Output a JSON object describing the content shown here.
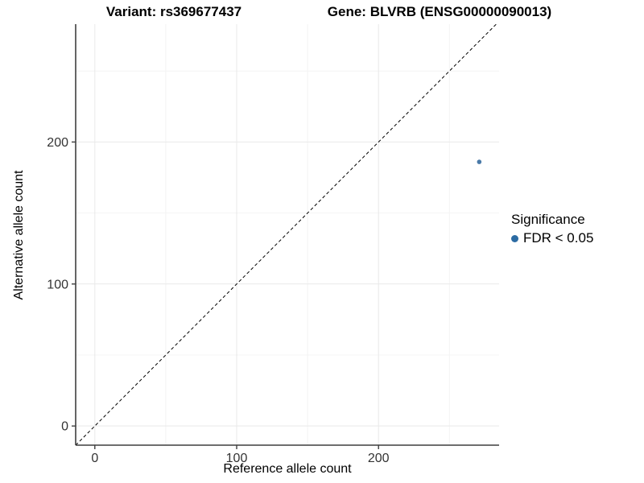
{
  "chart_data": {
    "type": "scatter",
    "titles": {
      "left": "Variant: rs369677437",
      "right": "Gene: BLVRB (ENSG00000090013)"
    },
    "xlabel": "Reference allele count",
    "ylabel": "Alternative allele count",
    "xlim": [
      -13.5,
      285
    ],
    "ylim": [
      -13.5,
      283
    ],
    "x_ticks": [
      0,
      100,
      200
    ],
    "y_ticks": [
      0,
      100,
      200
    ],
    "x_minor_ticks": [
      50,
      150,
      250
    ],
    "y_minor_ticks": [
      50,
      150,
      250
    ],
    "grid": {
      "major": true,
      "minor": true,
      "major_color": "#e9e9e9",
      "minor_color": "#f4f4f4"
    },
    "identity_line": {
      "slope": 1,
      "intercept": 0,
      "style": "dashed",
      "color": "#000000"
    },
    "series": [
      {
        "name": "FDR < 0.05",
        "color": "#4a7aa8",
        "marker": "circle",
        "points": [
          [
            271,
            186
          ]
        ]
      }
    ],
    "legend": {
      "title": "Significance",
      "position": "right",
      "entries": [
        {
          "label": "FDR < 0.05",
          "color": "#2c6ba3",
          "marker": "circle"
        }
      ]
    },
    "style": {
      "axis_color": "#3f3f3f",
      "tick_label_color": "#333333",
      "background": "#ffffff"
    }
  }
}
